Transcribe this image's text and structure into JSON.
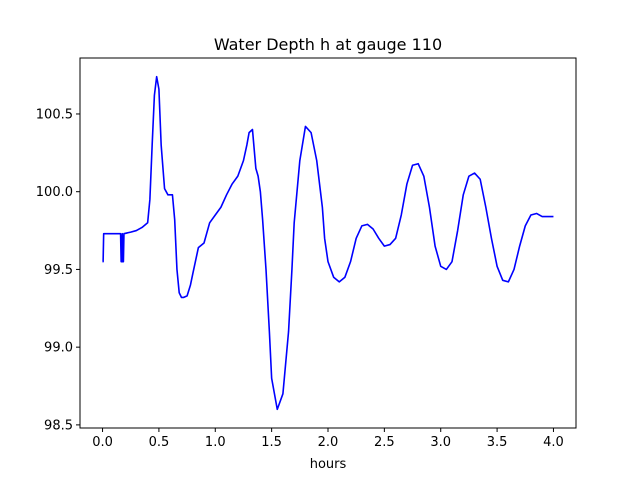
{
  "chart_data": {
    "type": "line",
    "title": "Water Depth h at gauge 110",
    "xlabel": "hours",
    "ylabel": "",
    "xlim": [
      -0.2,
      4.2
    ],
    "ylim": [
      98.48,
      100.86
    ],
    "grid": false,
    "xticks": [
      0.0,
      0.5,
      1.0,
      1.5,
      2.0,
      2.5,
      3.0,
      3.5,
      4.0
    ],
    "xtick_labels": [
      "0.0",
      "0.5",
      "1.0",
      "1.5",
      "2.0",
      "2.5",
      "3.0",
      "3.5",
      "4.0"
    ],
    "yticks": [
      98.5,
      99.0,
      99.5,
      100.0,
      100.5
    ],
    "ytick_labels": [
      "98.5",
      "99.0",
      "99.5",
      "100.0",
      "100.5"
    ],
    "series": [
      {
        "color": "#0000ff",
        "x": [
          0.0,
          0.005,
          0.01,
          0.05,
          0.1,
          0.15,
          0.16,
          0.165,
          0.17,
          0.175,
          0.18,
          0.185,
          0.19,
          0.25,
          0.3,
          0.35,
          0.4,
          0.42,
          0.44,
          0.46,
          0.48,
          0.5,
          0.52,
          0.55,
          0.58,
          0.6,
          0.62,
          0.64,
          0.66,
          0.68,
          0.7,
          0.72,
          0.75,
          0.78,
          0.8,
          0.85,
          0.9,
          0.95,
          1.0,
          1.05,
          1.1,
          1.15,
          1.2,
          1.25,
          1.28,
          1.3,
          1.33,
          1.36,
          1.38,
          1.4,
          1.42,
          1.45,
          1.48,
          1.5,
          1.55,
          1.6,
          1.65,
          1.68,
          1.7,
          1.75,
          1.8,
          1.85,
          1.9,
          1.95,
          1.97,
          2.0,
          2.05,
          2.1,
          2.15,
          2.2,
          2.25,
          2.3,
          2.35,
          2.4,
          2.45,
          2.5,
          2.55,
          2.6,
          2.65,
          2.7,
          2.75,
          2.8,
          2.85,
          2.9,
          2.95,
          3.0,
          3.05,
          3.1,
          3.15,
          3.2,
          3.25,
          3.3,
          3.35,
          3.4,
          3.45,
          3.5,
          3.55,
          3.6,
          3.65,
          3.7,
          3.75,
          3.8,
          3.85,
          3.9,
          3.95,
          4.0
        ],
        "y": [
          99.55,
          99.55,
          99.73,
          99.73,
          99.73,
          99.73,
          99.73,
          99.55,
          99.55,
          99.73,
          99.55,
          99.55,
          99.73,
          99.74,
          99.75,
          99.77,
          99.8,
          99.95,
          100.3,
          100.62,
          100.74,
          100.66,
          100.3,
          100.02,
          99.98,
          99.98,
          99.98,
          99.82,
          99.5,
          99.35,
          99.32,
          99.32,
          99.33,
          99.4,
          99.47,
          99.64,
          99.67,
          99.8,
          99.85,
          99.9,
          99.98,
          100.05,
          100.1,
          100.2,
          100.3,
          100.38,
          100.4,
          100.15,
          100.1,
          100.0,
          99.82,
          99.5,
          99.1,
          98.8,
          98.6,
          98.7,
          99.1,
          99.5,
          99.8,
          100.2,
          100.42,
          100.38,
          100.2,
          99.9,
          99.7,
          99.55,
          99.45,
          99.42,
          99.45,
          99.55,
          99.7,
          99.78,
          99.79,
          99.76,
          99.7,
          99.65,
          99.66,
          99.7,
          99.85,
          100.05,
          100.17,
          100.18,
          100.1,
          99.9,
          99.65,
          99.52,
          99.5,
          99.55,
          99.75,
          99.98,
          100.1,
          100.12,
          100.08,
          99.9,
          99.7,
          99.52,
          99.43,
          99.42,
          99.5,
          99.65,
          99.78,
          99.85,
          99.86,
          99.84,
          99.84,
          99.84
        ]
      }
    ]
  }
}
